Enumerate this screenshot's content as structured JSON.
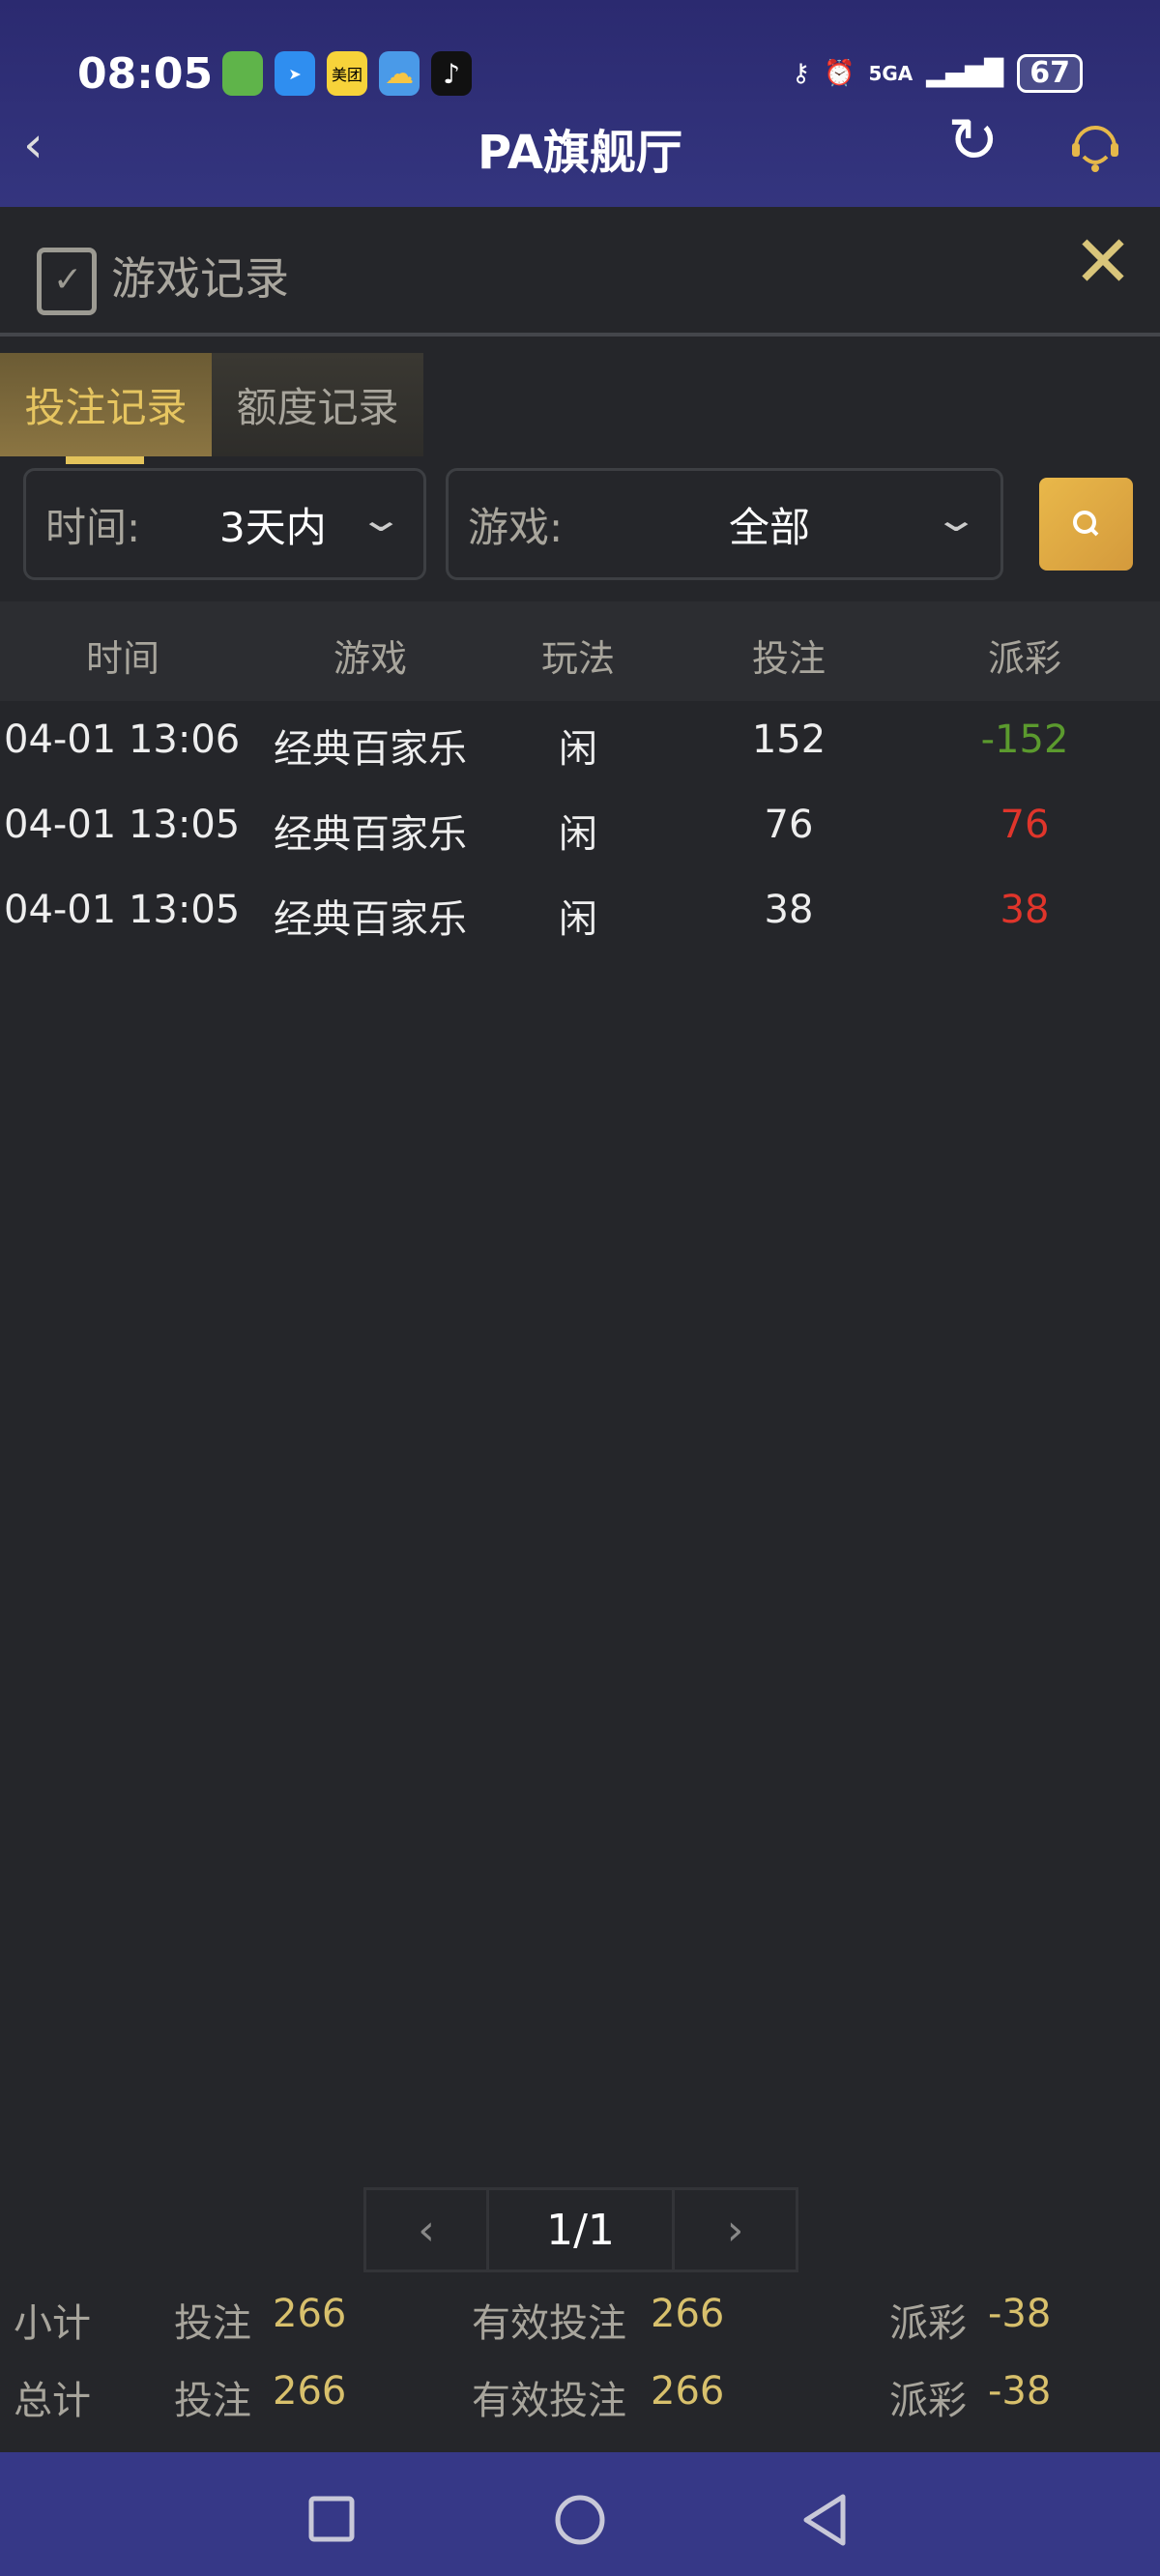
{
  "status_bar": {
    "time": "08:05",
    "notification_icons": [
      "game-app-icon",
      "feather-app-icon",
      "meituan-app-icon",
      "weather-app-icon",
      "tiktok-app-icon"
    ],
    "meituan_label": "美团",
    "network": "5GA",
    "battery": "67"
  },
  "nav": {
    "title": "PA旗舰厅"
  },
  "panel": {
    "title": "游戏记录"
  },
  "tabs": [
    {
      "label": "投注记录",
      "active": true
    },
    {
      "label": "额度记录",
      "active": false
    }
  ],
  "filters": {
    "time_label": "时间:",
    "time_value": "3天内",
    "game_label": "游戏:",
    "game_value": "全部"
  },
  "table": {
    "headers": [
      "时间",
      "游戏",
      "玩法",
      "投注",
      "派彩"
    ],
    "rows": [
      {
        "time": "04-01 13:06",
        "game": "经典百家乐",
        "play": "闲",
        "bet": "152",
        "payout": "-152",
        "payout_color": "#5b9a2e"
      },
      {
        "time": "04-01 13:05",
        "game": "经典百家乐",
        "play": "闲",
        "bet": "76",
        "payout": "76",
        "payout_color": "#e0352b"
      },
      {
        "time": "04-01 13:05",
        "game": "经典百家乐",
        "play": "闲",
        "bet": "38",
        "payout": "38",
        "payout_color": "#e0352b"
      }
    ]
  },
  "pagination": {
    "page": "1/1"
  },
  "summary": [
    {
      "label": "小计",
      "bet_label": "投注",
      "bet": "266",
      "valid_label": "有效投注",
      "valid": "266",
      "payout_label": "派彩",
      "payout": "-38"
    },
    {
      "label": "总计",
      "bet_label": "投注",
      "bet": "266",
      "valid_label": "有效投注",
      "valid": "266",
      "payout_label": "派彩",
      "payout": "-38"
    }
  ],
  "colors": {
    "accent": "#e3c35b",
    "header_bg": "#2b2a70",
    "body_bg": "#25262a"
  }
}
